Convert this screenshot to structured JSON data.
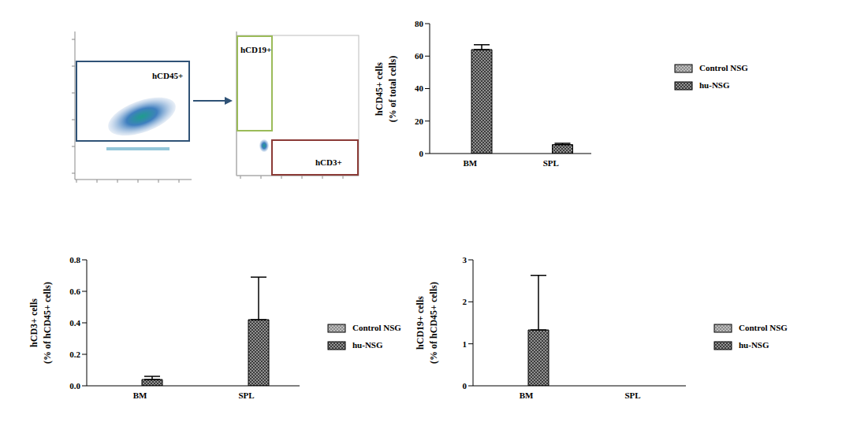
{
  "chart_data": [
    {
      "type": "bar",
      "y_label": "hCD45+ cells\n(% of total cells)",
      "categories": [
        "BM",
        "SPL"
      ],
      "series": [
        {
          "name": "Control NSG",
          "color": "#8c8c8c",
          "values": [
            0,
            0
          ]
        },
        {
          "name": "hu-NSG",
          "color": "#3c3c3c",
          "values": [
            64,
            5.5
          ],
          "errors": [
            3,
            0.8
          ]
        }
      ],
      "ylim": [
        0,
        80
      ],
      "yticks": [
        0,
        20,
        40,
        60,
        80
      ],
      "grid": false,
      "legend": "right"
    },
    {
      "type": "bar",
      "y_label": "hCD3+ cells\n(% of hCD45+ cells)",
      "categories": [
        "BM",
        "SPL"
      ],
      "series": [
        {
          "name": "Control NSG",
          "color": "#8c8c8c",
          "values": [
            0,
            0
          ]
        },
        {
          "name": "hu-NSG",
          "color": "#3c3c3c",
          "values": [
            0.04,
            0.42
          ],
          "errors": [
            0.02,
            0.27
          ]
        }
      ],
      "ylim": [
        0,
        0.8
      ],
      "yticks": [
        {
          "value": 0,
          "label": "0.0"
        },
        0.2,
        0.4,
        0.6,
        0.8
      ],
      "grid": false,
      "legend": "right"
    },
    {
      "type": "bar",
      "y_label": "hCD19+ cells\n(% of hCD45+ cells)",
      "categories": [
        "BM",
        "SPL"
      ],
      "series": [
        {
          "name": "Control NSG",
          "color": "#8c8c8c",
          "values": [
            0,
            0
          ]
        },
        {
          "name": "hu-NSG",
          "color": "#3c3c3c",
          "values": [
            1.33,
            0
          ],
          "errors": [
            1.3,
            0
          ]
        }
      ],
      "ylim": [
        0,
        3
      ],
      "yticks": [
        0,
        1,
        2,
        3
      ],
      "grid": false,
      "legend": "right"
    }
  ],
  "gating": {
    "plots": [
      {
        "gates": [
          {
            "label": "hCD45+",
            "color": "#2f5276"
          }
        ]
      },
      {
        "gates": [
          {
            "label": "hCD19+",
            "color": "#9bbb59"
          },
          {
            "label": "hCD3+",
            "color": "#8b3a36"
          }
        ]
      }
    ]
  }
}
